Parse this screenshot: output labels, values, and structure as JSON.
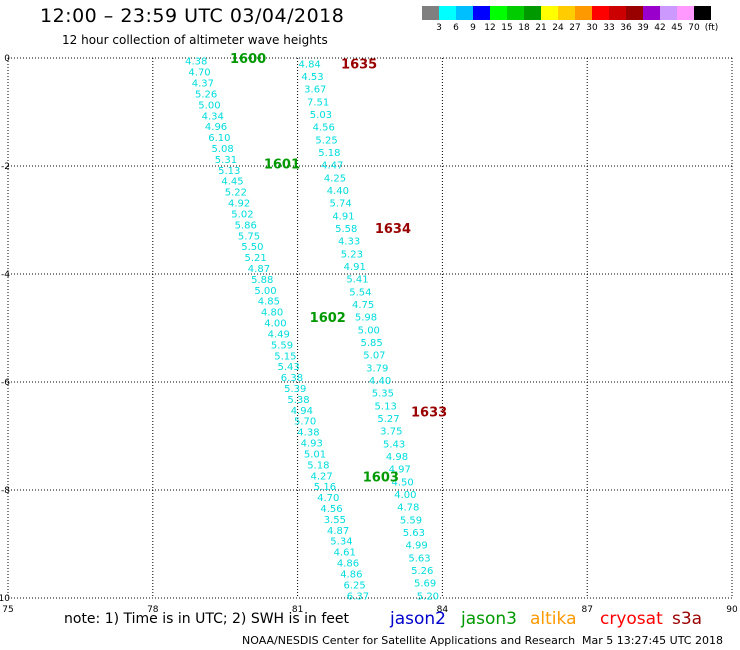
{
  "header": {
    "title": "12:00 – 23:59 UTC 03/04/2018",
    "subtitle": "12 hour collection of altimeter wave heights"
  },
  "colorbar": {
    "colors": [
      "#7f7f7f",
      "#00ffff",
      "#00bfff",
      "#0000ff",
      "#00ff00",
      "#00cc00",
      "#009900",
      "#ffff00",
      "#ffcc00",
      "#ff9900",
      "#ff0000",
      "#cc0000",
      "#990000",
      "#9900cc",
      "#cc99ff",
      "#ff99ff",
      "#000000"
    ],
    "labels": [
      "3",
      "6",
      "9",
      "12",
      "15",
      "18",
      "21",
      "24",
      "27",
      "30",
      "33",
      "36",
      "39",
      "42",
      "45",
      "70"
    ],
    "unit": "(ft)"
  },
  "footer": {
    "note": "note:  1) Time is in UTC;  2) SWH is in feet",
    "satellites": [
      {
        "name": "jason2",
        "color": "#0000cc"
      },
      {
        "name": "jason3",
        "color": "#009900"
      },
      {
        "name": "altika",
        "color": "#ff9900"
      },
      {
        "name": "cryosat",
        "color": "#ff0000"
      },
      {
        "name": "s3a",
        "color": "#990000"
      }
    ],
    "credit": "NOAA/NESDIS Center for Satellite Applications and Research",
    "timestamp": "Mar  5 13:27:45 UTC 2018"
  },
  "chart_data": {
    "type": "scatter",
    "title": "12:00 – 23:59 UTC 03/04/2018",
    "subtitle": "12 hour collection of altimeter wave heights",
    "xlim": [
      75,
      90
    ],
    "ylim": [
      -10,
      0
    ],
    "x_ticks": [
      "75",
      "78",
      "81",
      "84",
      "87",
      "90"
    ],
    "y_ticks": [
      "0",
      "-2",
      "-4",
      "-6",
      "-8",
      "-10"
    ],
    "grid": true,
    "value_color": "#00dddd",
    "tracks": [
      {
        "start": [
          78.9,
          -0.05
        ],
        "end": [
          82.25,
          -9.95
        ],
        "values": [
          "4.38",
          "4.70",
          "4.37",
          "5.26",
          "5.00",
          "4.34",
          "4.96",
          "6.10",
          "5.08",
          "5.31",
          "5.13",
          "4.45",
          "5.22",
          "4.92",
          "5.02",
          "5.86",
          "5.75",
          "5.50",
          "5.21",
          "4.87",
          "5.88",
          "5.00",
          "4.85",
          "4.80",
          "4.00",
          "4.49",
          "5.59",
          "5.15",
          "5.43",
          "6.38",
          "5.39",
          "5.38",
          "4.94",
          "5.70",
          "4.38",
          "4.93",
          "5.01",
          "5.18",
          "4.27",
          "5.16",
          "4.70",
          "4.56",
          "3.55",
          "4.87",
          "5.34",
          "4.61",
          "4.86",
          "4.86",
          "6.25",
          "6.37"
        ]
      },
      {
        "start": [
          81.25,
          -0.1
        ],
        "end": [
          83.7,
          -9.95
        ],
        "values": [
          "4.84",
          "4.53",
          "3.67",
          "7.51",
          "5.03",
          "4.56",
          "5.25",
          "5.18",
          "4.47",
          "4.25",
          "4.40",
          "5.74",
          "4.91",
          "5.58",
          "4.33",
          "5.23",
          "4.91",
          "5.41",
          "5.54",
          "4.75",
          "5.98",
          "5.00",
          "5.85",
          "5.07",
          "3.79",
          "4.40",
          "5.35",
          "5.13",
          "5.27",
          "3.75",
          "5.43",
          "4.98",
          "4.97",
          "4.50",
          "4.00",
          "4.78",
          "5.59",
          "5.63",
          "4.99",
          "5.63",
          "5.26",
          "5.69",
          "5.20"
        ]
      }
    ],
    "pass_labels": [
      {
        "text": "1600",
        "x": 79.6,
        "y": 0.0,
        "color": "#009900"
      },
      {
        "text": "1635",
        "x": 81.9,
        "y": -0.1,
        "color": "#990000"
      },
      {
        "text": "1601",
        "x": 80.3,
        "y": -1.95,
        "color": "#009900"
      },
      {
        "text": "1634",
        "x": 82.6,
        "y": -3.15,
        "color": "#990000"
      },
      {
        "text": "1602",
        "x": 81.25,
        "y": -4.8,
        "color": "#009900"
      },
      {
        "text": "1633",
        "x": 83.35,
        "y": -6.55,
        "color": "#990000"
      },
      {
        "text": "1603",
        "x": 82.35,
        "y": -7.75,
        "color": "#009900"
      }
    ]
  }
}
